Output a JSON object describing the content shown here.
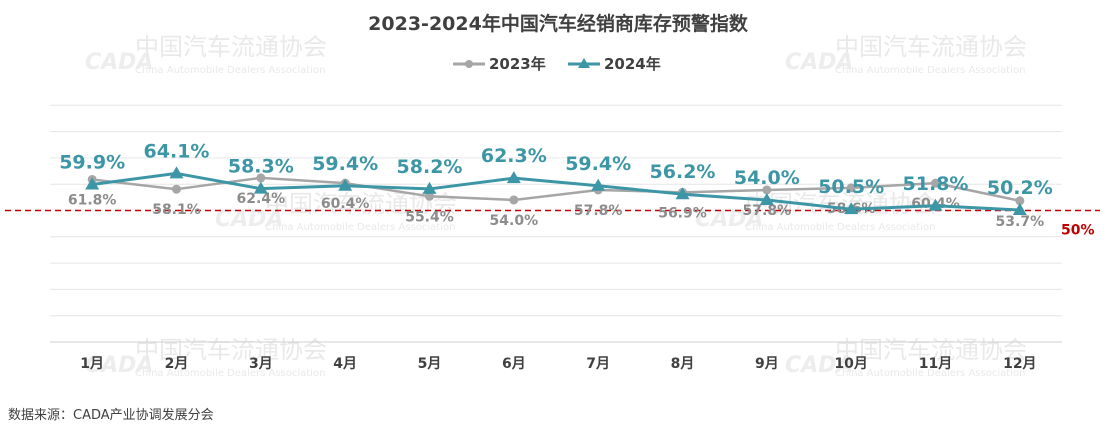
{
  "chart_data": {
    "type": "line",
    "title": "2023-2024年中国汽车经销商库存预警指数",
    "categories": [
      "1月",
      "2月",
      "3月",
      "4月",
      "5月",
      "6月",
      "7月",
      "8月",
      "9月",
      "10月",
      "11月",
      "12月"
    ],
    "series": [
      {
        "name": "2023年",
        "color": "#a6a6a6",
        "marker": "circle",
        "values": [
          61.8,
          58.1,
          62.4,
          60.4,
          55.4,
          54.0,
          57.8,
          56.9,
          57.8,
          58.6,
          60.4,
          53.7
        ],
        "labels": [
          "61.8%",
          "58.1%",
          "62.4%",
          "60.4%",
          "55.4%",
          "54.0%",
          "57.8%",
          "56.9%",
          "57.8%",
          "58.6%",
          "60.4%",
          "53.7%"
        ]
      },
      {
        "name": "2024年",
        "color": "#3d96a6",
        "marker": "triangle",
        "values": [
          59.9,
          64.1,
          58.3,
          59.4,
          58.2,
          62.3,
          59.4,
          56.2,
          54.0,
          50.5,
          51.8,
          50.2
        ],
        "labels": [
          "59.9%",
          "64.1%",
          "58.3%",
          "59.4%",
          "58.2%",
          "62.3%",
          "59.4%",
          "56.2%",
          "54.0%",
          "50.5%",
          "51.8%",
          "50.2%"
        ]
      }
    ],
    "reference_line": {
      "value": 50,
      "label": "50%",
      "color": "#c00000",
      "style": "dashed"
    },
    "grid": true,
    "legend_position": "top-center"
  },
  "watermark": {
    "cn": "中国汽车流通协会",
    "en": "China Automobile Dealers Association",
    "logo": "CADA"
  },
  "source": "数据来源：CADA产业协调发展分会"
}
